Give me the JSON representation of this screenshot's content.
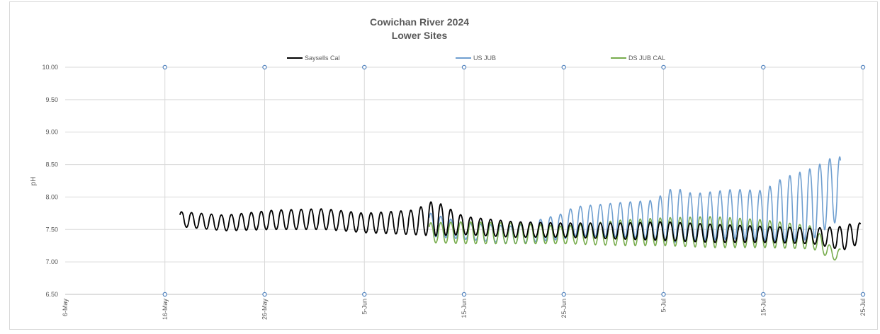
{
  "chart_data": {
    "type": "line",
    "title": "Cowichan River 2024",
    "subtitle": "Lower Sites",
    "xlabel": "",
    "ylabel": "pH",
    "ylim": [
      6.5,
      10.0
    ],
    "yticks": [
      "6.50",
      "7.00",
      "7.50",
      "8.00",
      "8.50",
      "9.00",
      "9.50",
      "10.00"
    ],
    "xlim": [
      "2024-05-06",
      "2024-07-25"
    ],
    "xticks": [
      {
        "date": "2024-05-06",
        "label": "6-May"
      },
      {
        "date": "2024-05-16",
        "label": "16-May"
      },
      {
        "date": "2024-05-26",
        "label": "26-May"
      },
      {
        "date": "2024-06-05",
        "label": "5-Jun"
      },
      {
        "date": "2024-06-15",
        "label": "15-Jun"
      },
      {
        "date": "2024-06-25",
        "label": "25-Jun"
      },
      {
        "date": "2024-07-05",
        "label": "5-Jul"
      },
      {
        "date": "2024-07-15",
        "label": "15-Jul"
      },
      {
        "date": "2024-07-25",
        "label": "25-Jul"
      }
    ],
    "grid": true,
    "legend_position": "top",
    "series": [
      {
        "name": "Saysells Cal",
        "color": "#000000",
        "start": "2024-05-17T12:00",
        "end": "2024-07-24T18:00",
        "daily_cycles": [
          {
            "date": "2024-05-17",
            "min": 7.55,
            "max": 7.78
          },
          {
            "date": "2024-05-22",
            "min": 7.48,
            "max": 7.72
          },
          {
            "date": "2024-05-27",
            "min": 7.5,
            "max": 7.8
          },
          {
            "date": "2024-06-01",
            "min": 7.5,
            "max": 7.82
          },
          {
            "date": "2024-06-05",
            "min": 7.45,
            "max": 7.75
          },
          {
            "date": "2024-06-10",
            "min": 7.42,
            "max": 7.8
          },
          {
            "date": "2024-06-12",
            "min": 7.4,
            "max": 7.95
          },
          {
            "date": "2024-06-15",
            "min": 7.42,
            "max": 7.7
          },
          {
            "date": "2024-06-20",
            "min": 7.38,
            "max": 7.62
          },
          {
            "date": "2024-06-25",
            "min": 7.38,
            "max": 7.6
          },
          {
            "date": "2024-07-01",
            "min": 7.35,
            "max": 7.6
          },
          {
            "date": "2024-07-05",
            "min": 7.33,
            "max": 7.62
          },
          {
            "date": "2024-07-10",
            "min": 7.3,
            "max": 7.58
          },
          {
            "date": "2024-07-15",
            "min": 7.3,
            "max": 7.55
          },
          {
            "date": "2024-07-20",
            "min": 7.28,
            "max": 7.52
          },
          {
            "date": "2024-07-23",
            "min": 7.18,
            "max": 7.55
          },
          {
            "date": "2024-07-24",
            "min": 7.25,
            "max": 7.6
          }
        ]
      },
      {
        "name": "US JUB",
        "color": "#6f9fd0",
        "start": "2024-06-11T12:00",
        "end": "2024-07-22T18:00",
        "daily_cycles": [
          {
            "date": "2024-06-11",
            "min": 7.4,
            "max": 7.78
          },
          {
            "date": "2024-06-15",
            "min": 7.35,
            "max": 7.6
          },
          {
            "date": "2024-06-20",
            "min": 7.28,
            "max": 7.55
          },
          {
            "date": "2024-06-25",
            "min": 7.35,
            "max": 7.75
          },
          {
            "date": "2024-06-26",
            "min": 7.4,
            "max": 7.85
          },
          {
            "date": "2024-07-01",
            "min": 7.38,
            "max": 7.92
          },
          {
            "date": "2024-07-04",
            "min": 7.35,
            "max": 7.95
          },
          {
            "date": "2024-07-06",
            "min": 7.3,
            "max": 8.15
          },
          {
            "date": "2024-07-08",
            "min": 7.32,
            "max": 8.05
          },
          {
            "date": "2024-07-12",
            "min": 7.35,
            "max": 8.12
          },
          {
            "date": "2024-07-15",
            "min": 7.33,
            "max": 8.1
          },
          {
            "date": "2024-07-17",
            "min": 7.3,
            "max": 8.3
          },
          {
            "date": "2024-07-20",
            "min": 7.35,
            "max": 8.45
          },
          {
            "date": "2024-07-22",
            "min": 7.6,
            "max": 8.62
          }
        ]
      },
      {
        "name": "DS JUB CAL",
        "color": "#77ac4c",
        "start": "2024-06-11T12:00",
        "end": "2024-07-22T18:00",
        "daily_cycles": [
          {
            "date": "2024-06-11",
            "min": 7.3,
            "max": 7.6
          },
          {
            "date": "2024-06-15",
            "min": 7.28,
            "max": 7.62
          },
          {
            "date": "2024-06-20",
            "min": 7.28,
            "max": 7.6
          },
          {
            "date": "2024-06-25",
            "min": 7.28,
            "max": 7.55
          },
          {
            "date": "2024-07-01",
            "min": 7.25,
            "max": 7.65
          },
          {
            "date": "2024-07-05",
            "min": 7.25,
            "max": 7.68
          },
          {
            "date": "2024-07-10",
            "min": 7.22,
            "max": 7.7
          },
          {
            "date": "2024-07-15",
            "min": 7.22,
            "max": 7.65
          },
          {
            "date": "2024-07-20",
            "min": 7.2,
            "max": 7.55
          },
          {
            "date": "2024-07-22",
            "min": 7.03,
            "max": 7.2
          }
        ]
      }
    ]
  }
}
